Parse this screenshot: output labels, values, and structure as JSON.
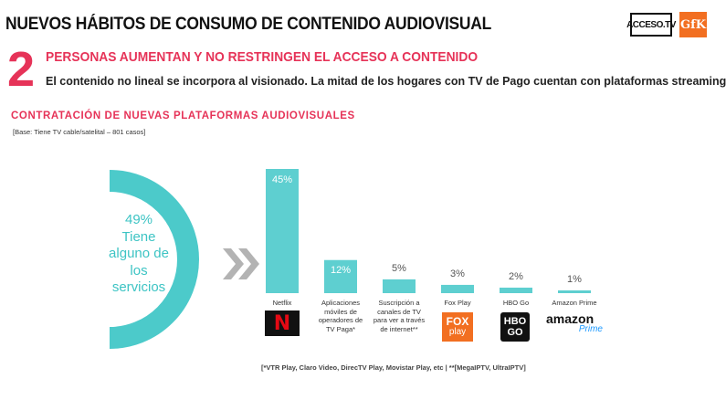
{
  "header": {
    "title": "NUEVOS HÁBITOS DE  CONSUMO DE CONTENIDO AUDIOVISUAL",
    "logo_acceso": "ACCESO.TV",
    "logo_gfk": "GfK",
    "number": "2",
    "subtitle": "PERSONAS AUMENTAN Y NO RESTRINGEN EL ACCESO A CONTENIDO",
    "description": "El contenido no lineal se incorpora  al visionado. La mitad de los hogares con TV de Pago cuentan con plataformas streaming."
  },
  "section": {
    "title": "CONTRATACIÓN DE NUEVAS PLATAFORMAS AUDIOVISUALES",
    "base": "[Base: Tiene TV cable/satelital – 801 casos]"
  },
  "highlight": {
    "percent": 49,
    "percent_label": "49%",
    "lines": [
      "Tiene",
      "alguno de",
      "los",
      "servicios"
    ]
  },
  "colors": {
    "accent": "#e63358",
    "bar": "#5ecfd0",
    "arc": "#4ccaca"
  },
  "chart_data": {
    "type": "bar",
    "title": "CONTRATACIÓN DE NUEVAS PLATAFORMAS AUDIOVISUALES",
    "xlabel": "",
    "ylabel": "",
    "ylim": [
      0,
      50
    ],
    "categories": [
      "Netflix",
      "Aplicaciones móviles de operadores de TV Paga*",
      "Suscripción a canales de TV para ver a través de internet**",
      "Fox Play",
      "HBO Go",
      "Amazon Prime"
    ],
    "category_lines": [
      [
        "Netflix"
      ],
      [
        "Aplicaciones",
        "móviles de",
        "operadores de",
        "TV Paga*"
      ],
      [
        "Suscripción a",
        "canales de TV",
        "para ver a través",
        "de internet**"
      ],
      [
        "Fox Play"
      ],
      [
        "HBO Go"
      ],
      [
        "Amazon Prime"
      ]
    ],
    "values": [
      45,
      12,
      5,
      3,
      2,
      1
    ],
    "value_labels": [
      "45%",
      "12%",
      "5%",
      "3%",
      "2%",
      "1%"
    ]
  },
  "brands": {
    "netflix": "N",
    "fox_top": "FOX",
    "fox_bottom": "play",
    "hbo_top": "HBO",
    "hbo_bottom": "GO",
    "amazon_top": "amazon",
    "amazon_bottom": "Prime"
  },
  "footnote": "[*VTR Play, Claro Video, DirecTV Play, Movistar Play, etc |  **[MegaIPTV, UltraIPTV]"
}
